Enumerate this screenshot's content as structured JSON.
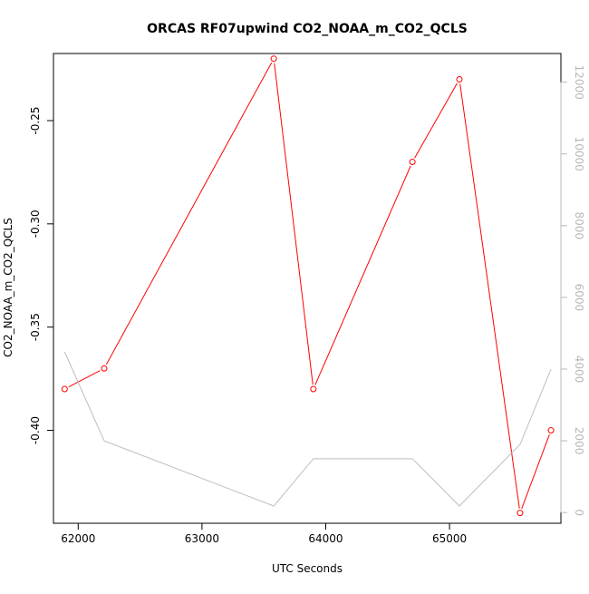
{
  "chart_data": {
    "type": "line",
    "title": "ORCAS RF07upwind CO2_NOAA_m_CO2_QCLS",
    "xlabel": "UTC Seconds",
    "ylabel": "CO2_NOAA_m_CO2_QCLS",
    "xlim": [
      61800,
      65900
    ],
    "ylim": [
      -0.445,
      -0.2175
    ],
    "y2lim": [
      -300,
      12800
    ],
    "x_ticks": [
      62000,
      63000,
      64000,
      65000
    ],
    "y_ticks": [
      -0.4,
      -0.35,
      -0.3,
      -0.25
    ],
    "y_tick_labels": [
      "-0.40",
      "-0.35",
      "-0.30",
      "-0.25"
    ],
    "y2_ticks": [
      0,
      2000,
      4000,
      6000,
      8000,
      10000,
      12000
    ],
    "grid": false,
    "legend": "none",
    "series": [
      {
        "role": "primary",
        "color": "#ff0000",
        "marker": "open-circle",
        "x": [
          61890,
          62210,
          63580,
          63900,
          64700,
          65080,
          65570,
          65820
        ],
        "y": [
          -0.38,
          -0.37,
          -0.22,
          -0.38,
          -0.27,
          -0.23,
          -0.44,
          -0.4
        ]
      },
      {
        "role": "secondary-axis",
        "color": "#bebebe",
        "marker": "none",
        "x": [
          61890,
          62210,
          63580,
          63900,
          64700,
          65080,
          65570,
          65820
        ],
        "y": [
          4480,
          2000,
          180,
          1500,
          1500,
          180,
          1900,
          4000
        ]
      }
    ]
  }
}
